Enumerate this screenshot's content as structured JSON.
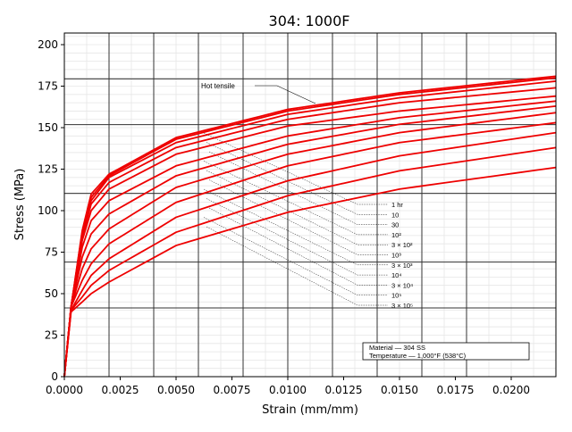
{
  "chart_data": {
    "type": "line",
    "title": "304: 1000F",
    "xlabel": "Strain (mm/mm)",
    "ylabel": "Stress (MPa)",
    "xlim": [
      0.0,
      0.022
    ],
    "ylim": [
      0,
      207
    ],
    "xticks": [
      0.0,
      0.0025,
      0.005,
      0.0075,
      0.01,
      0.0125,
      0.015,
      0.0175,
      0.02
    ],
    "xtick_labels": [
      "0.0000",
      "0.0025",
      "0.0050",
      "0.0075",
      "0.0100",
      "0.0125",
      "0.0150",
      "0.0175",
      "0.0200"
    ],
    "yticks": [
      0,
      25,
      50,
      75,
      100,
      125,
      150,
      175,
      200
    ],
    "ytick_labels": [
      "0",
      "25",
      "50",
      "75",
      "100",
      "125",
      "150",
      "175",
      "200"
    ],
    "grid": true,
    "legend": "none",
    "line_color": "#ee0000",
    "series": [
      {
        "label_in_figure": "Hot tensile",
        "x": [
          0.0,
          0.0003,
          0.0008,
          0.0012,
          0.002,
          0.005,
          0.01,
          0.015,
          0.022
        ],
        "y": [
          0,
          42,
          88,
          110,
          122,
          144,
          161,
          171,
          181
        ]
      },
      {
        "label_in_figure": "1 hr",
        "x": [
          0.0,
          0.0003,
          0.0008,
          0.0012,
          0.002,
          0.005,
          0.01,
          0.015,
          0.022
        ],
        "y": [
          0,
          42,
          87,
          108,
          121,
          143,
          160,
          170,
          180
        ]
      },
      {
        "label_in_figure": "10",
        "x": [
          0.0,
          0.0003,
          0.0008,
          0.0012,
          0.002,
          0.005,
          0.01,
          0.015,
          0.022
        ],
        "y": [
          0,
          42,
          86,
          106,
          120,
          141,
          158,
          168,
          178
        ]
      },
      {
        "label_in_figure": "30",
        "x": [
          0.0,
          0.0003,
          0.0008,
          0.0012,
          0.002,
          0.005,
          0.01,
          0.015,
          0.022
        ],
        "y": [
          0,
          42,
          84,
          104,
          117,
          138,
          155,
          165,
          174
        ]
      },
      {
        "label_in_figure": "10²",
        "x": [
          0.0,
          0.0003,
          0.0008,
          0.0012,
          0.002,
          0.005,
          0.01,
          0.015,
          0.022
        ],
        "y": [
          0,
          42,
          82,
          100,
          113,
          134,
          151,
          160,
          169
        ]
      },
      {
        "label_in_figure": "3 × 10²",
        "x": [
          0.0,
          0.0003,
          0.0008,
          0.0012,
          0.002,
          0.005,
          0.01,
          0.015,
          0.022
        ],
        "y": [
          0,
          42,
          78,
          94,
          106,
          127,
          145,
          156,
          166
        ]
      },
      {
        "label_in_figure": "10³",
        "x": [
          0.0,
          0.0003,
          0.0008,
          0.0012,
          0.002,
          0.005,
          0.01,
          0.015,
          0.022
        ],
        "y": [
          0,
          42,
          72,
          86,
          98,
          121,
          140,
          152,
          163
        ]
      },
      {
        "label_in_figure": "3 × 10³",
        "x": [
          0.0,
          0.0003,
          0.0008,
          0.0012,
          0.002,
          0.005,
          0.01,
          0.015,
          0.022
        ],
        "y": [
          0,
          42,
          65,
          77,
          89,
          114,
          134,
          147,
          159
        ]
      },
      {
        "label_in_figure": "10⁴",
        "x": [
          0.0,
          0.0003,
          0.0008,
          0.0012,
          0.002,
          0.005,
          0.01,
          0.015,
          0.022
        ],
        "y": [
          0,
          42,
          58,
          68,
          80,
          105,
          127,
          141,
          153
        ]
      },
      {
        "label_in_figure": "3 × 10⁴",
        "x": [
          0.0,
          0.0003,
          0.0008,
          0.0012,
          0.002,
          0.005,
          0.01,
          0.015,
          0.022
        ],
        "y": [
          0,
          40,
          52,
          61,
          71,
          96,
          118,
          133,
          147
        ]
      },
      {
        "label_in_figure": "10⁵",
        "x": [
          0.0,
          0.0003,
          0.0008,
          0.0012,
          0.002,
          0.005,
          0.01,
          0.015,
          0.022
        ],
        "y": [
          0,
          40,
          48,
          55,
          64,
          87,
          109,
          124,
          138
        ]
      },
      {
        "label_in_figure": "3 × 10⁵",
        "x": [
          0.0,
          0.0003,
          0.0008,
          0.0012,
          0.002,
          0.005,
          0.01,
          0.015,
          0.022
        ],
        "y": [
          0,
          39,
          45,
          50,
          57,
          79,
          99,
          113,
          126
        ]
      }
    ],
    "scan_labels": {
      "hot_tensile": "Hot tensile",
      "times": [
        "1 hr",
        "10",
        "30",
        "10²",
        "3 × 10²",
        "10³",
        "3 × 10³",
        "10⁴",
        "3 × 10⁴",
        "10⁵",
        "3 × 10⁵"
      ],
      "material": "Material — 304 SS",
      "temperature": "Temperature — 1,000°F (538°C)"
    }
  }
}
